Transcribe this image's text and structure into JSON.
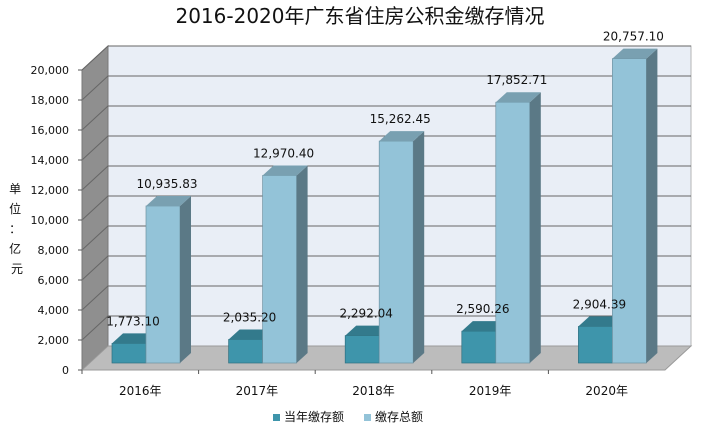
{
  "chart_data": {
    "type": "bar",
    "title": "2016-2020年广东省住房公积金缴存情况",
    "ylabel": "单位：亿元",
    "ylabel_chars": [
      "单",
      "位",
      "：",
      "亿",
      "元"
    ],
    "categories": [
      "2016年",
      "2017年",
      "2018年",
      "2019年",
      "2020年"
    ],
    "series": [
      {
        "name": "当年缴存额",
        "color": "#3e95ab",
        "values": [
          1773.1,
          2035.2,
          2292.04,
          2590.26,
          2904.39
        ],
        "labels": [
          "1,773.10",
          "2,035.20",
          "2,292.04",
          "2,590.26",
          "2,904.39"
        ]
      },
      {
        "name": "缴存总额",
        "color": "#93c3d8",
        "values": [
          10935.83,
          12970.4,
          15262.45,
          17852.71,
          20757.1
        ],
        "labels": [
          "10,935.83",
          "12,970.40",
          "15,262.45",
          "17,852.71",
          "20,757.10"
        ]
      }
    ],
    "ylim": [
      0,
      20000
    ],
    "yticks": [
      0,
      2000,
      4000,
      6000,
      8000,
      10000,
      12000,
      14000,
      16000,
      18000,
      20000
    ],
    "ytick_labels": [
      "0",
      "2,000",
      "4,000",
      "6,000",
      "8,000",
      "10,000",
      "12,000",
      "14,000",
      "16,000",
      "18,000",
      "20,000"
    ],
    "grid": true,
    "legend_position": "bottom"
  }
}
